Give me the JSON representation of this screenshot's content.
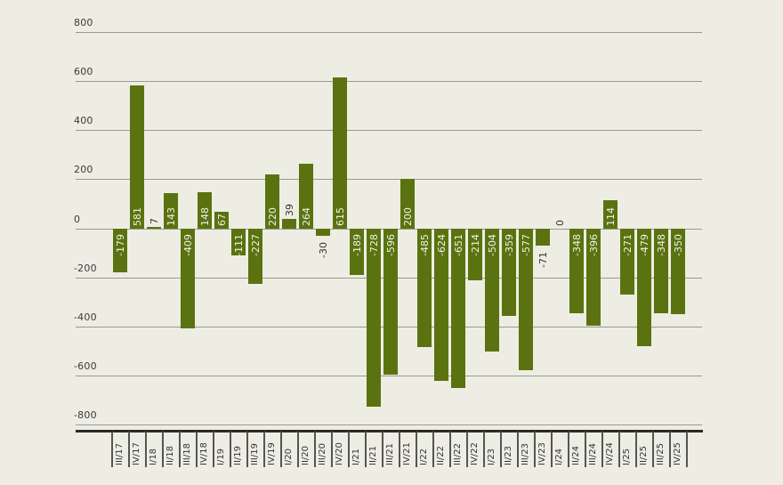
{
  "chart_data": {
    "type": "bar",
    "title": "",
    "xlabel": "",
    "ylabel": "",
    "ylim": [
      -800,
      800
    ],
    "yticks": [
      800,
      600,
      400,
      200,
      0,
      -200,
      -400,
      -600,
      -800
    ],
    "grid": true,
    "legend": null,
    "bar_color": "#5a7310",
    "background_color": "#eeede3",
    "categories": [
      "III/17",
      "IV/17",
      "I/18",
      "II/18",
      "III/18",
      "IV/18",
      "I/19",
      "II/19",
      "III/19",
      "IV/19",
      "I/20",
      "II/20",
      "III/20",
      "IV/20",
      "I/21",
      "II/21",
      "III/21",
      "IV/21",
      "I/22",
      "II/22",
      "III/22",
      "IV/22",
      "I/23",
      "II/23",
      "III/23",
      "IV/23",
      "I/24",
      "II/24",
      "III/24",
      "IV/24",
      "I/25",
      "II/25",
      "III/25",
      "IV/25"
    ],
    "values": [
      -179,
      581,
      7,
      143,
      -409,
      148,
      67,
      -111,
      -227,
      220,
      39,
      264,
      -30,
      615,
      -189,
      -728,
      -596,
      200,
      -485,
      -624,
      -651,
      -214,
      -504,
      -359,
      -577,
      -71,
      0,
      -348,
      -396,
      114,
      -271,
      -479,
      -348,
      -350
    ]
  }
}
